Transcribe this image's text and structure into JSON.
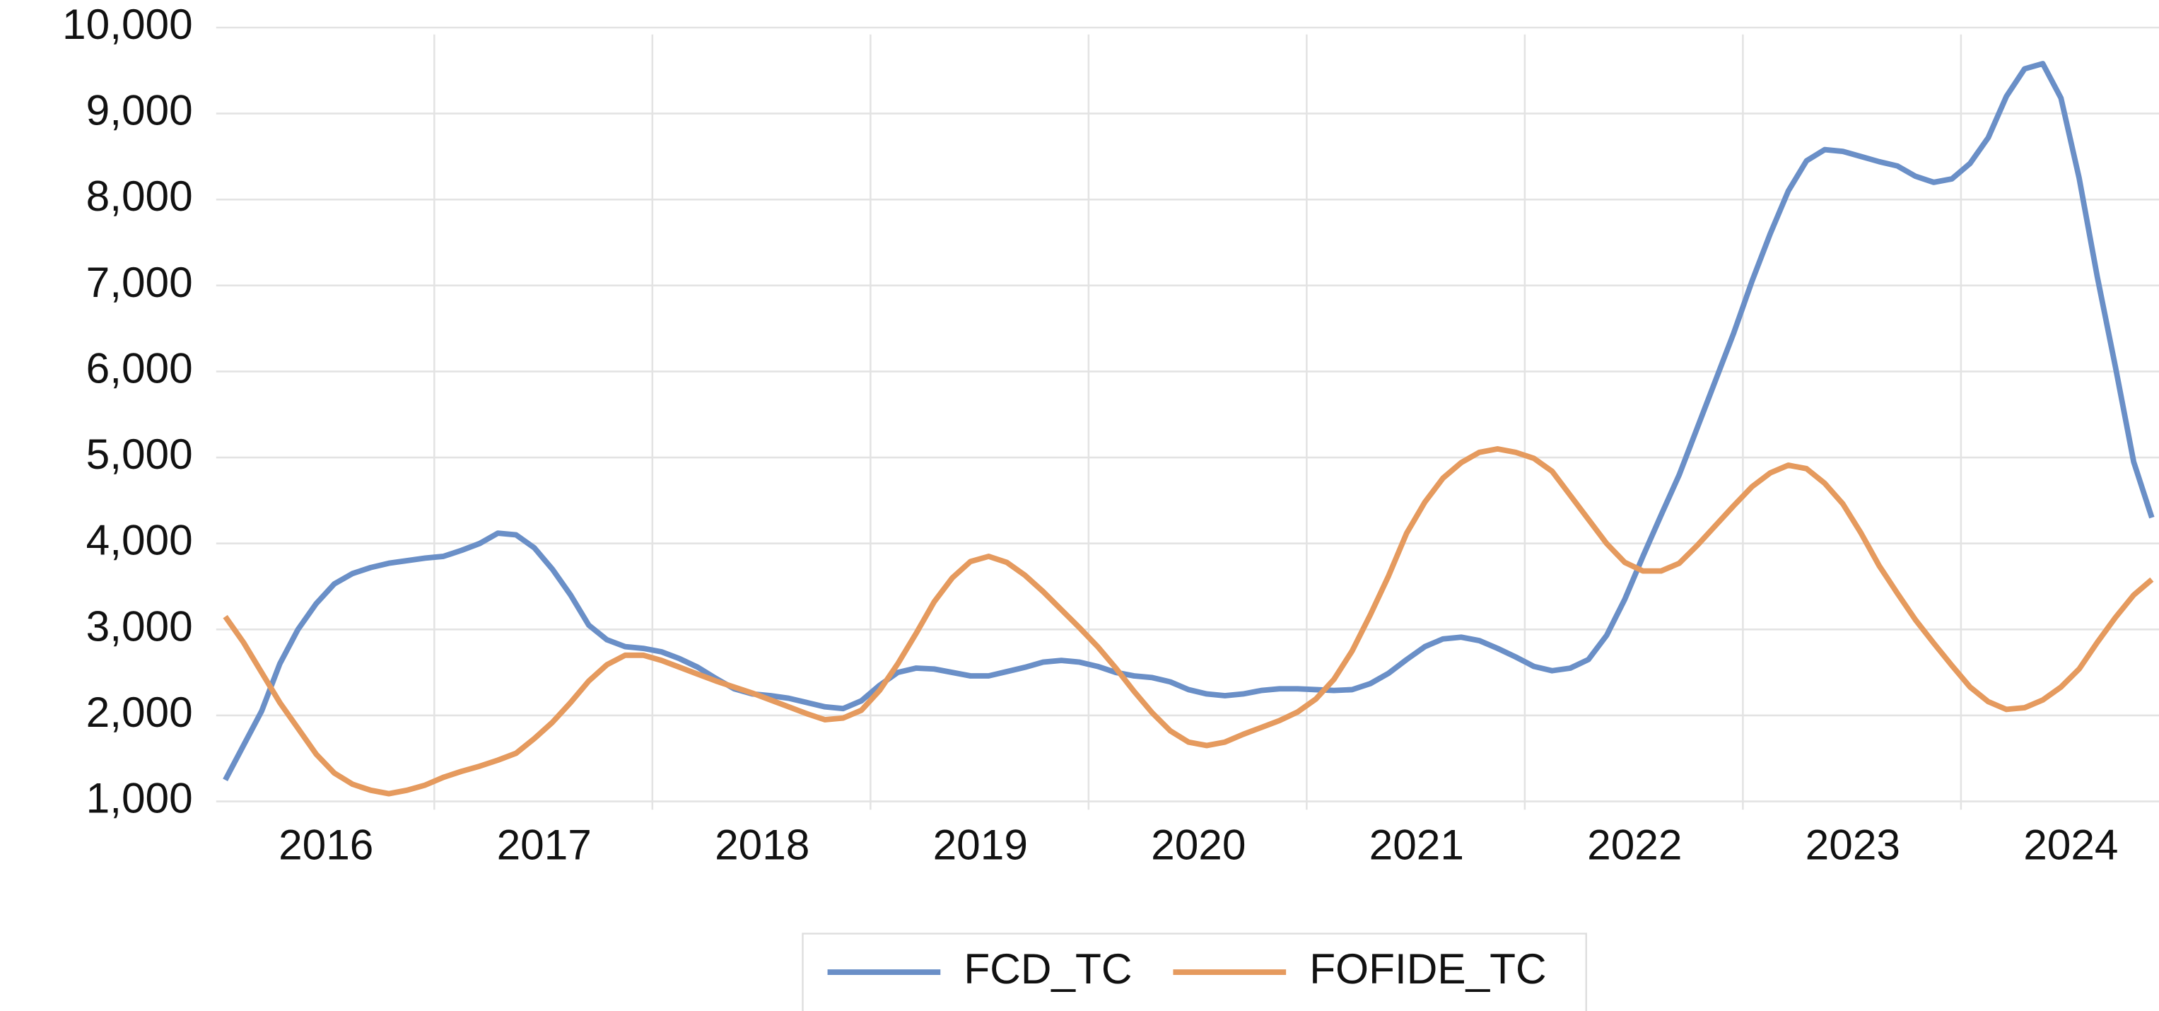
{
  "chart_data": {
    "type": "line",
    "categories": [
      null,
      null,
      null,
      null,
      null,
      null,
      "2016",
      null,
      null,
      null,
      null,
      null,
      null,
      null,
      null,
      null,
      null,
      null,
      "2017",
      null,
      null,
      null,
      null,
      null,
      null,
      null,
      null,
      null,
      null,
      null,
      "2018",
      null,
      null,
      null,
      null,
      null,
      null,
      null,
      null,
      null,
      null,
      null,
      "2019",
      null,
      null,
      null,
      null,
      null,
      null,
      null,
      null,
      null,
      null,
      null,
      "2020",
      null,
      null,
      null,
      null,
      null,
      null,
      null,
      null,
      null,
      null,
      null,
      "2021",
      null,
      null,
      null,
      null,
      null,
      null,
      null,
      null,
      null,
      null,
      null,
      "2022",
      null,
      null,
      null,
      null,
      null,
      null,
      null,
      null,
      null,
      null,
      null,
      "2023",
      null,
      null,
      null,
      null,
      null,
      null,
      null,
      null,
      null,
      null,
      null,
      "2024",
      null,
      null,
      null,
      null
    ],
    "series": [
      {
        "name": "FCD_TC",
        "color": "#6a8fc7",
        "values": [
          1250,
          1650,
          2050,
          2600,
          3000,
          3300,
          3530,
          3650,
          3720,
          3770,
          3800,
          3830,
          3850,
          3920,
          4000,
          4120,
          4100,
          3950,
          3700,
          3400,
          3050,
          2880,
          2800,
          2780,
          2740,
          2660,
          2560,
          2430,
          2310,
          2250,
          2230,
          2200,
          2150,
          2100,
          2080,
          2170,
          2350,
          2500,
          2550,
          2540,
          2500,
          2460,
          2460,
          2510,
          2560,
          2620,
          2640,
          2620,
          2570,
          2500,
          2460,
          2440,
          2390,
          2300,
          2250,
          2230,
          2250,
          2290,
          2310,
          2310,
          2300,
          2290,
          2300,
          2370,
          2490,
          2650,
          2800,
          2890,
          2910,
          2870,
          2780,
          2680,
          2570,
          2520,
          2550,
          2650,
          2930,
          3350,
          3850,
          4330,
          4800,
          5350,
          5900,
          6450,
          7050,
          7600,
          8100,
          8450,
          8580,
          8560,
          8500,
          8440,
          8390,
          8270,
          8200,
          8240,
          8420,
          8720,
          9200,
          9520,
          9580,
          9180,
          8250,
          7100,
          6050,
          4950,
          4300
        ]
      },
      {
        "name": "FOFIDE_TC",
        "color": "#e59a5e",
        "values": [
          3150,
          2850,
          2500,
          2150,
          1850,
          1550,
          1330,
          1200,
          1130,
          1090,
          1130,
          1190,
          1280,
          1350,
          1410,
          1480,
          1560,
          1730,
          1920,
          2150,
          2400,
          2590,
          2700,
          2700,
          2640,
          2560,
          2480,
          2400,
          2330,
          2260,
          2180,
          2100,
          2020,
          1950,
          1970,
          2060,
          2290,
          2600,
          2950,
          3320,
          3600,
          3790,
          3850,
          3780,
          3630,
          3440,
          3230,
          3020,
          2800,
          2550,
          2280,
          2030,
          1820,
          1690,
          1650,
          1690,
          1780,
          1860,
          1940,
          2040,
          2190,
          2420,
          2750,
          3170,
          3620,
          4120,
          4480,
          4760,
          4940,
          5060,
          5100,
          5060,
          4990,
          4840,
          4560,
          4280,
          4000,
          3780,
          3680,
          3680,
          3770,
          3980,
          4210,
          4440,
          4660,
          4820,
          4910,
          4870,
          4700,
          4460,
          4120,
          3740,
          3420,
          3110,
          2840,
          2580,
          2330,
          2160,
          2070,
          2090,
          2180,
          2330,
          2540,
          2850,
          3140,
          3400,
          3580
        ]
      }
    ],
    "ylim": [
      1000,
      10000
    ],
    "yticks": [
      {
        "value": 1000,
        "label": "1,000"
      },
      {
        "value": 2000,
        "label": "2,000"
      },
      {
        "value": 3000,
        "label": "3,000"
      },
      {
        "value": 4000,
        "label": "4,000"
      },
      {
        "value": 5000,
        "label": "5,000"
      },
      {
        "value": 6000,
        "label": "6,000"
      },
      {
        "value": 7000,
        "label": "7,000"
      },
      {
        "value": 8000,
        "label": "8,000"
      },
      {
        "value": 9000,
        "label": "9,000"
      },
      {
        "value": 10000,
        "label": "10,000"
      }
    ],
    "grid": true,
    "legend": "bottom"
  }
}
